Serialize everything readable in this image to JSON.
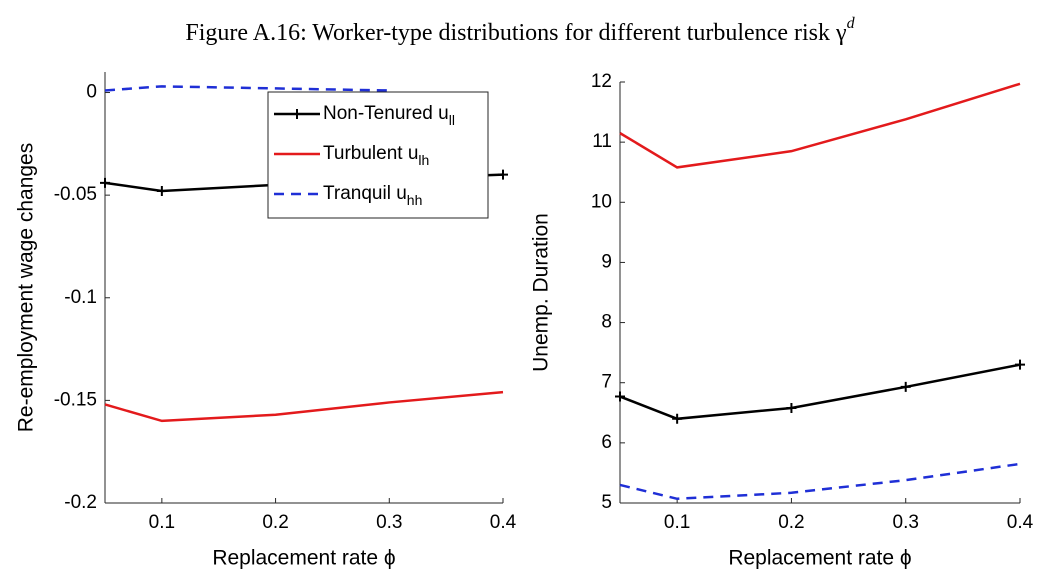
{
  "title": "Figure A.16: Worker-type distributions for different turbulence risk γ",
  "title_sup": "d",
  "chart_data": [
    {
      "type": "line",
      "xlabel": "Replacement rate ϕ",
      "ylabel": "Re-employment wage changes",
      "x": [
        0.05,
        0.1,
        0.2,
        0.3,
        0.4
      ],
      "xlim": [
        0.05,
        0.4
      ],
      "xticks": [
        0.1,
        0.2,
        0.3,
        0.4
      ],
      "ylim": [
        -0.2,
        0.01
      ],
      "yticks": [
        0,
        -0.05,
        -0.1,
        -0.15,
        -0.2
      ],
      "legend": "northeast",
      "series": [
        {
          "name": "Non-Tenured u",
          "name_sub": "ll",
          "color": "#000000",
          "style": "solid",
          "marker": "+",
          "values": [
            -0.044,
            -0.048,
            -0.045,
            -0.042,
            -0.04
          ]
        },
        {
          "name": "Turbulent u",
          "name_sub": "lh",
          "color": "#e31a1c",
          "style": "solid",
          "values": [
            -0.152,
            -0.16,
            -0.157,
            -0.151,
            -0.146
          ]
        },
        {
          "name": "Tranquil u",
          "name_sub": "hh",
          "color": "#1f2fd6",
          "style": "dashed",
          "values": [
            0.001,
            0.003,
            0.002,
            0.001,
            null
          ]
        }
      ]
    },
    {
      "type": "line",
      "xlabel": "Replacement rate ϕ",
      "ylabel": "Unemp. Duration",
      "x": [
        0.05,
        0.1,
        0.2,
        0.3,
        0.4
      ],
      "xlim": [
        0.05,
        0.4
      ],
      "xticks": [
        0.1,
        0.2,
        0.3,
        0.4
      ],
      "ylim": [
        5,
        12
      ],
      "yticks": [
        5,
        6,
        7,
        8,
        9,
        10,
        11,
        12
      ],
      "series": [
        {
          "color": "#000000",
          "style": "solid",
          "marker": "+",
          "values": [
            6.77,
            6.4,
            6.58,
            6.93,
            7.3
          ]
        },
        {
          "color": "#e31a1c",
          "style": "solid",
          "values": [
            11.15,
            10.58,
            10.85,
            11.38,
            11.97
          ]
        },
        {
          "color": "#1f2fd6",
          "style": "dashed",
          "values": [
            5.3,
            5.07,
            5.17,
            5.38,
            5.65
          ]
        }
      ]
    }
  ]
}
